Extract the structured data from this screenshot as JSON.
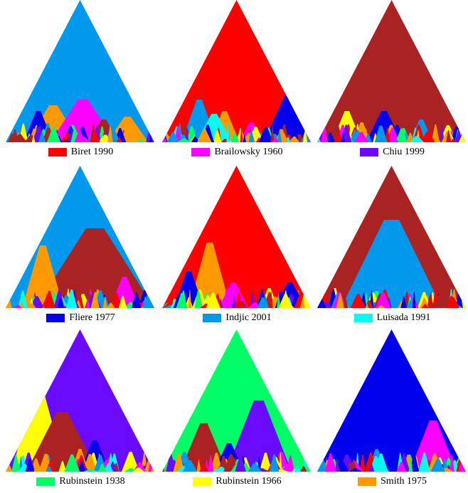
{
  "legend": [
    {
      "label": "Biret 1990",
      "color": "#ff0000"
    },
    {
      "label": "Brailowsky 1960",
      "color": "#ff00ff"
    },
    {
      "label": "Chiu 1999",
      "color": "#6a0aff"
    },
    {
      "label": "Fliere 1977",
      "color": "#0000ee"
    },
    {
      "label": "Indjic 2001",
      "color": "#0099ee"
    },
    {
      "label": "Luisada 1991",
      "color": "#00ffee"
    },
    {
      "label": "Rubinstein 1938",
      "color": "#00ff66"
    },
    {
      "label": "Rubinstein 1966",
      "color": "#ffff00"
    },
    {
      "label": "Smith 1975",
      "color": "#ff9900"
    }
  ],
  "colors": {
    "brown": "#aa2222"
  },
  "panels": [
    {
      "base": "#0099ee",
      "patches": [
        [
          "#ff9900",
          0.32,
          0.18,
          0.26
        ],
        [
          "#ff9900",
          0.82,
          0.14,
          0.18
        ],
        [
          "#ff00ff",
          0.52,
          0.22,
          0.3
        ],
        [
          "#aa2222",
          0.66,
          0.1,
          0.16
        ],
        [
          "#0000ee",
          0.22,
          0.1,
          0.22
        ],
        [
          "#00ff66",
          0.45,
          0.06,
          0.12
        ]
      ]
    },
    {
      "base": "#ff0000",
      "patches": [
        [
          "#0000ee",
          0.9,
          0.22,
          0.42
        ],
        [
          "#0099ee",
          0.25,
          0.12,
          0.3
        ],
        [
          "#ff9900",
          0.42,
          0.1,
          0.22
        ],
        [
          "#00ffee",
          0.35,
          0.12,
          0.2
        ],
        [
          "#ff00ff",
          0.6,
          0.08,
          0.14
        ],
        [
          "#aa2222",
          0.15,
          0.06,
          0.12
        ]
      ]
    },
    {
      "base": "#aa2222",
      "patches": [
        [
          "#0000ee",
          0.45,
          0.12,
          0.22
        ],
        [
          "#ffff00",
          0.2,
          0.1,
          0.22
        ],
        [
          "#0099ee",
          0.7,
          0.08,
          0.16
        ],
        [
          "#ff9900",
          0.3,
          0.06,
          0.14
        ],
        [
          "#ffff00",
          0.88,
          0.06,
          0.12
        ],
        [
          "#00ff66",
          0.58,
          0.05,
          0.1
        ]
      ]
    },
    {
      "base": "#0099ee",
      "patches": [
        [
          "#aa2222",
          0.6,
          0.4,
          0.56
        ],
        [
          "#ff9900",
          0.25,
          0.14,
          0.44
        ],
        [
          "#ff00ff",
          0.8,
          0.1,
          0.22
        ],
        [
          "#aa2222",
          0.9,
          0.06,
          0.12
        ],
        [
          "#00ff66",
          0.62,
          0.05,
          0.12
        ],
        [
          "#ffff00",
          0.52,
          0.05,
          0.1
        ]
      ]
    },
    {
      "base": "#ff0000",
      "patches": [
        [
          "#ff9900",
          0.32,
          0.14,
          0.46
        ],
        [
          "#0000ee",
          0.18,
          0.1,
          0.26
        ],
        [
          "#ff00ff",
          0.48,
          0.1,
          0.18
        ],
        [
          "#0000ee",
          0.86,
          0.1,
          0.18
        ],
        [
          "#ffff00",
          0.72,
          0.06,
          0.14
        ],
        [
          "#00ff66",
          0.3,
          0.05,
          0.1
        ]
      ]
    },
    {
      "base": "#aa2222",
      "patches": [
        [
          "#0099ee",
          0.5,
          0.34,
          0.62
        ],
        [
          "#ffff00",
          0.12,
          0.04,
          0.14
        ],
        [
          "#00ff66",
          0.4,
          0.05,
          0.12
        ],
        [
          "#ff00ff",
          0.62,
          0.04,
          0.1
        ],
        [
          "#0000ee",
          0.82,
          0.05,
          0.1
        ]
      ]
    },
    {
      "base": "#6a0aff",
      "patches": [
        [
          "#ffff00",
          0.22,
          0.18,
          0.6
        ],
        [
          "#aa2222",
          0.38,
          0.24,
          0.42
        ],
        [
          "#0000ee",
          0.6,
          0.1,
          0.22
        ],
        [
          "#ff9900",
          0.5,
          0.06,
          0.16
        ],
        [
          "#ffff00",
          0.84,
          0.06,
          0.14
        ],
        [
          "#ff00ff",
          0.7,
          0.05,
          0.1
        ]
      ]
    },
    {
      "base": "#00ff66",
      "patches": [
        [
          "#6a0aff",
          0.65,
          0.22,
          0.5
        ],
        [
          "#aa2222",
          0.28,
          0.16,
          0.34
        ],
        [
          "#0000ee",
          0.45,
          0.1,
          0.2
        ],
        [
          "#ff00ff",
          0.8,
          0.06,
          0.14
        ],
        [
          "#0099ee",
          0.15,
          0.06,
          0.14
        ],
        [
          "#ffff00",
          0.56,
          0.04,
          0.1
        ]
      ]
    },
    {
      "base": "#0000ee",
      "patches": [
        [
          "#ff00ff",
          0.78,
          0.16,
          0.36
        ],
        [
          "#0099ee",
          0.4,
          0.06,
          0.16
        ],
        [
          "#00ff66",
          0.62,
          0.05,
          0.12
        ],
        [
          "#ff0000",
          0.9,
          0.05,
          0.1
        ],
        [
          "#ffff00",
          0.58,
          0.04,
          0.08
        ],
        [
          "#6a0aff",
          0.2,
          0.06,
          0.12
        ]
      ]
    }
  ]
}
